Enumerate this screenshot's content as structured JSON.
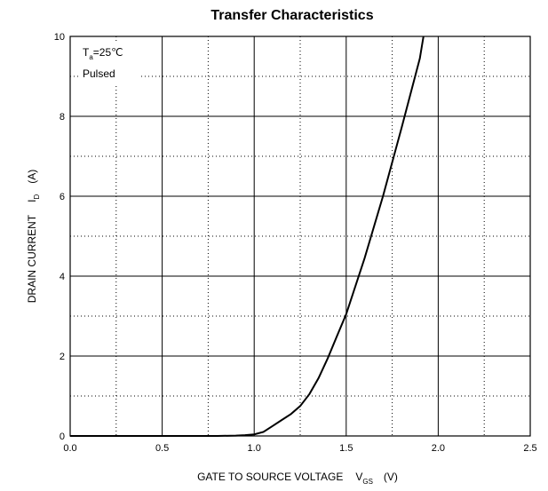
{
  "chart_data": {
    "type": "line",
    "title": "Transfer Characteristics",
    "xlabel": {
      "main": "GATE TO SOURCE VOLTAGE",
      "symbol": "V",
      "subscript": "GS",
      "unit": "(V)"
    },
    "ylabel": {
      "main": "DRAIN CURRENT",
      "symbol": "I",
      "subscript": "D",
      "unit": "(A)"
    },
    "xlim": [
      0.0,
      2.5
    ],
    "ylim": [
      0,
      10
    ],
    "x_ticks": [
      "0.0",
      "0.5",
      "1.0",
      "1.5",
      "2.0",
      "2.5"
    ],
    "y_ticks": [
      "0",
      "2",
      "4",
      "6",
      "8",
      "10"
    ],
    "grid": "major solid, minor dotted",
    "annotation": {
      "line1_symbol": "T",
      "line1_subscript": "a",
      "line1_value": "=25℃",
      "line2": "Pulsed"
    },
    "series": [
      {
        "x": [
          0.0,
          0.5,
          0.8,
          0.9,
          0.95,
          1.0,
          1.05,
          1.1,
          1.15,
          1.2,
          1.25,
          1.3,
          1.35,
          1.4,
          1.45,
          1.5,
          1.6,
          1.7,
          1.8,
          1.9,
          1.92
        ],
        "y": [
          0.0,
          0.0,
          0.0,
          0.01,
          0.02,
          0.04,
          0.1,
          0.25,
          0.4,
          0.55,
          0.75,
          1.05,
          1.45,
          1.95,
          2.5,
          3.05,
          4.45,
          6.0,
          7.7,
          9.45,
          10.0
        ]
      }
    ]
  }
}
